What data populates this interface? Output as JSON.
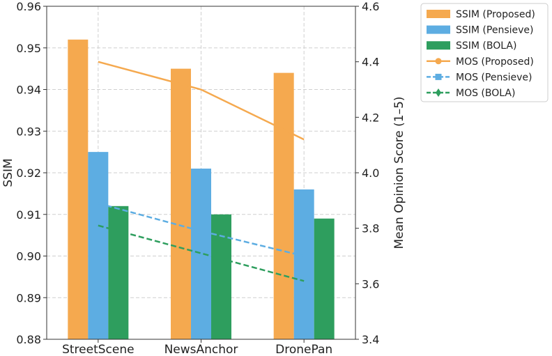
{
  "chart_data": {
    "type": "bar",
    "categories": [
      "StreetScene",
      "NewsAnchor",
      "DronePan"
    ],
    "ylabel": "SSIM",
    "ylim": [
      0.88,
      0.96
    ],
    "y_ticks": [
      "0.88",
      "0.89",
      "0.90",
      "0.91",
      "0.92",
      "0.93",
      "0.94",
      "0.95",
      "0.96"
    ],
    "y2label": "Mean Opinion Score (1–5)",
    "y2lim": [
      3.4,
      4.6
    ],
    "y2_ticks": [
      "3.4",
      "3.6",
      "3.8",
      "4.0",
      "4.2",
      "4.4",
      "4.6"
    ],
    "grid": true,
    "legend_position": "outside top-right",
    "bar_series": [
      {
        "name": "SSIM (Proposed)",
        "values": [
          0.952,
          0.945,
          0.944
        ],
        "color": "#F5A94F"
      },
      {
        "name": "SSIM (Pensieve)",
        "values": [
          0.925,
          0.921,
          0.916
        ],
        "color": "#5DADE2"
      },
      {
        "name": "SSIM (BOLA)",
        "values": [
          0.912,
          0.91,
          0.909
        ],
        "color": "#2E9E5E"
      }
    ],
    "line_series": [
      {
        "name": "MOS (Proposed)",
        "values": [
          4.4,
          4.3,
          4.12
        ],
        "color": "#F5A94F",
        "dash": "solid",
        "marker": "circle"
      },
      {
        "name": "MOS (Pensieve)",
        "values": [
          3.89,
          3.79,
          3.7
        ],
        "color": "#5DADE2",
        "dash": "dashed",
        "marker": "square"
      },
      {
        "name": "MOS (BOLA)",
        "values": [
          3.81,
          3.71,
          3.61
        ],
        "color": "#2E9E5E",
        "dash": "dashed",
        "marker": "diamond"
      }
    ]
  }
}
